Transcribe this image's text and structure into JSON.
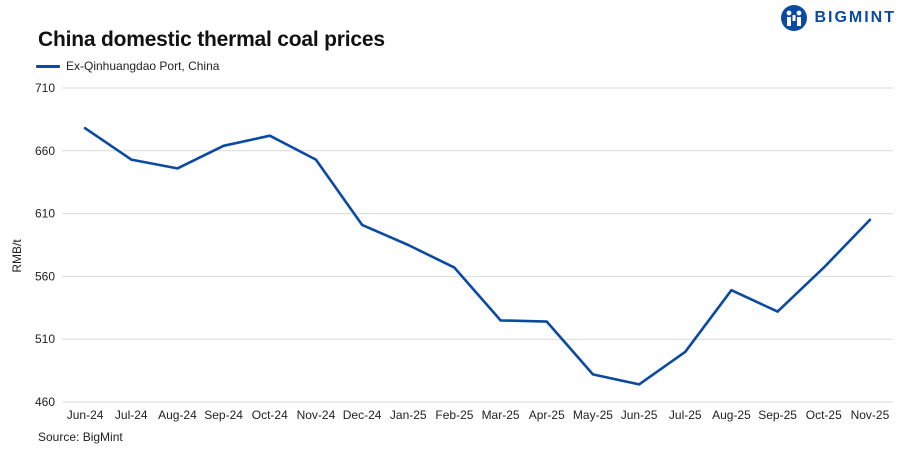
{
  "brand": {
    "name": "BIGMINT"
  },
  "chart_data": {
    "type": "line",
    "title": "China domestic thermal coal prices",
    "ylabel": "RMB/t",
    "xlabel": "",
    "source": "Source: BigMint",
    "ylim": [
      460,
      710
    ],
    "yticks": [
      460,
      510,
      560,
      610,
      660,
      710
    ],
    "grid": true,
    "legend_position": "top-left",
    "categories": [
      "Jun-24",
      "Jul-24",
      "Aug-24",
      "Sep-24",
      "Oct-24",
      "Nov-24",
      "Dec-24",
      "Jan-25",
      "Feb-25",
      "Mar-25",
      "Apr-25",
      "May-25",
      "Jun-25",
      "Jul-25",
      "Aug-25",
      "Sep-25",
      "Oct-25",
      "Nov-25"
    ],
    "series": [
      {
        "name": "Ex-Qinhuangdao Port, China",
        "color": "#0b4aa2",
        "values": [
          678,
          653,
          646,
          664,
          672,
          653,
          601,
          585,
          567,
          525,
          524,
          482,
          474,
          500,
          549,
          532,
          567,
          605
        ]
      }
    ]
  }
}
